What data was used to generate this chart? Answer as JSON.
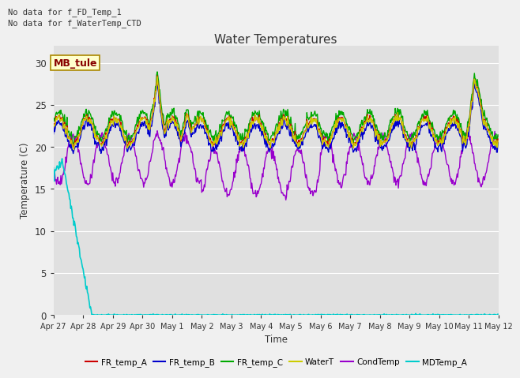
{
  "title": "Water Temperatures",
  "xlabel": "Time",
  "ylabel": "Temperature (C)",
  "ylim": [
    0,
    32
  ],
  "yticks": [
    0,
    5,
    10,
    15,
    20,
    25,
    30
  ],
  "fig_bg": "#f0f0f0",
  "ax_bg": "#e0e0e0",
  "text_color": "#333333",
  "annotations": [
    "No data for f_FD_Temp_1",
    "No data for f_WaterTemp_CTD"
  ],
  "box_label": "MB_tule",
  "series": {
    "FR_temp_A": {
      "color": "#cc0000",
      "lw": 1.0
    },
    "FR_temp_B": {
      "color": "#0000cc",
      "lw": 1.0
    },
    "FR_temp_C": {
      "color": "#00aa00",
      "lw": 1.0
    },
    "WaterT": {
      "color": "#cccc00",
      "lw": 1.0
    },
    "CondTemp": {
      "color": "#9900cc",
      "lw": 1.0
    },
    "MDTemp_A": {
      "color": "#00cccc",
      "lw": 1.2
    }
  },
  "x_tick_labels": [
    "Apr 27",
    "Apr 28",
    "Apr 29",
    "Apr 30",
    "May 1",
    "May 2",
    "May 3",
    "May 4",
    "May 5",
    "May 6",
    "May 7",
    "May 8",
    "May 9",
    "May 10",
    "May 11",
    "May 12"
  ],
  "n_points": 720,
  "n_days": 15
}
